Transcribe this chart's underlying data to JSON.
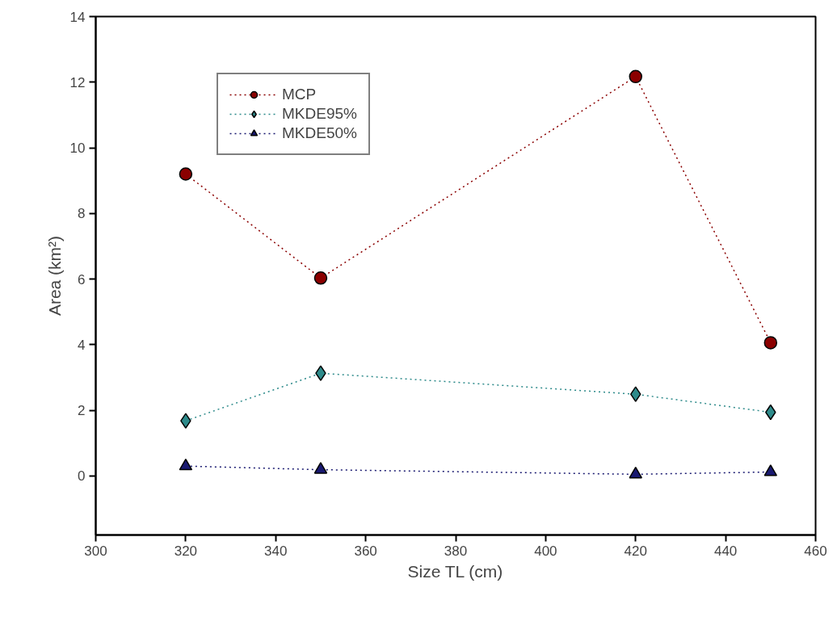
{
  "chart_data": {
    "type": "line",
    "xlabel": "Size TL (cm)",
    "ylabel": "Area (km²)",
    "x": [
      320,
      350,
      420,
      450
    ],
    "series": [
      {
        "name": "MCP",
        "color": "#8b0000",
        "marker": "circle",
        "values": [
          9.2,
          6.03,
          12.17,
          4.06
        ]
      },
      {
        "name": "MKDE95%",
        "color": "#2e8b8b",
        "marker": "diamond",
        "values": [
          1.68,
          3.13,
          2.49,
          1.94
        ]
      },
      {
        "name": "MKDE50%",
        "color": "#191970",
        "marker": "triangle",
        "values": [
          0.3,
          0.19,
          0.05,
          0.12
        ]
      }
    ],
    "xlim": [
      300,
      460
    ],
    "xticks": [
      300,
      320,
      340,
      360,
      380,
      400,
      420,
      440,
      460
    ],
    "ylim": [
      -1.8,
      14
    ],
    "yticks": [
      0,
      2,
      4,
      6,
      8,
      10,
      12,
      14
    ],
    "grid": false,
    "legend": "top left",
    "line_style": "dotted"
  }
}
